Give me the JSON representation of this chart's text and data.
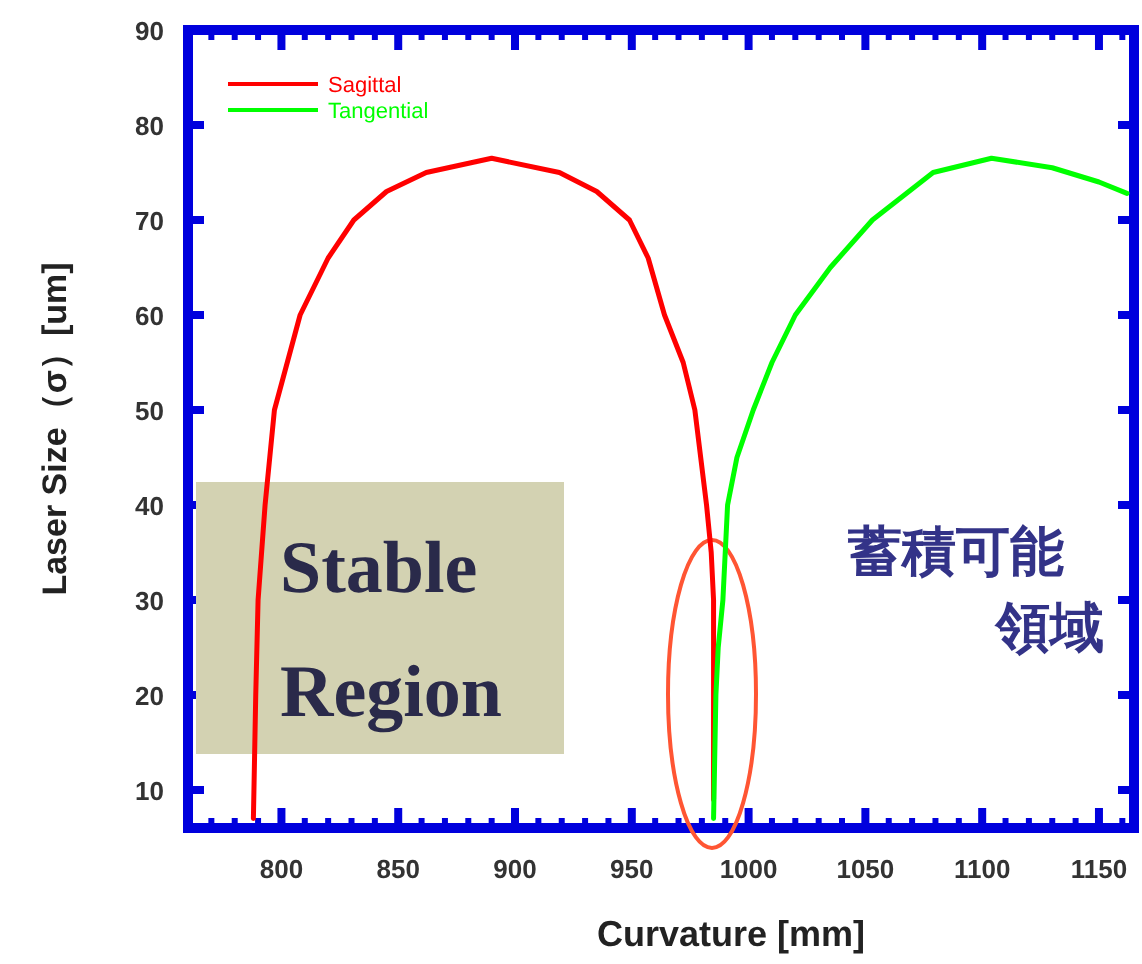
{
  "chart_data": {
    "type": "line",
    "xlabel": "Curvature  [mm]",
    "ylabel": "Laser Size（σ）[um]",
    "xlim": [
      760,
      1165
    ],
    "ylim": [
      6,
      90
    ],
    "xticks": [
      800,
      850,
      900,
      950,
      1000,
      1050,
      1100,
      1150
    ],
    "yticks": [
      10,
      20,
      30,
      40,
      50,
      60,
      70,
      80,
      90
    ],
    "legend": "top left",
    "grid": false,
    "marker": "none",
    "line_style": "solid",
    "series": [
      {
        "name": "Sagittal",
        "color": "#ff0000",
        "x": [
          788,
          789,
          790,
          793,
          797,
          808,
          820,
          831,
          845,
          862,
          890,
          919,
          935,
          949,
          957,
          964,
          972,
          977,
          982,
          984,
          985,
          985,
          985
        ],
        "values": [
          7,
          20,
          30,
          40,
          50,
          60,
          66,
          70,
          73,
          75,
          76.5,
          75,
          73,
          70,
          66,
          60,
          55,
          50,
          40,
          35,
          30,
          20,
          9
        ]
      },
      {
        "name": "Tangential",
        "color": "#00ff00",
        "x": [
          985,
          986,
          987,
          989,
          991,
          995,
          1002,
          1010,
          1020,
          1035,
          1053,
          1079,
          1104,
          1130,
          1150,
          1162
        ],
        "values": [
          7,
          20,
          25,
          30,
          40,
          45,
          50,
          55,
          60,
          65,
          70,
          75,
          76.5,
          75.5,
          74,
          72.8
        ]
      }
    ],
    "annotations": [
      "Stable\nRegion",
      "蓄積可能",
      "領域"
    ]
  }
}
